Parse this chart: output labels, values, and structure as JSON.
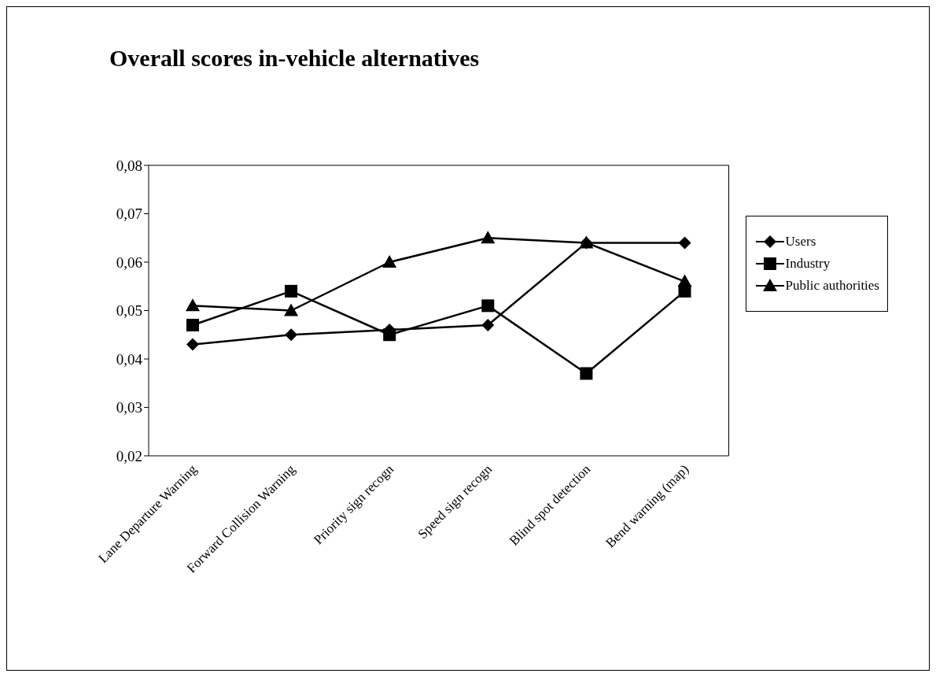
{
  "chart_data": {
    "type": "line",
    "title": "Overall scores in-vehicle alternatives",
    "categories": [
      "Lane Departure Warning",
      "Forward Collision Warning",
      "Priority sign recogn",
      "Speed sign recogn",
      "Blind spot detection",
      "Bend warning (map)"
    ],
    "series": [
      {
        "name": "Users",
        "color": "#000000",
        "marker": "diamond",
        "values": [
          0.043,
          0.045,
          0.046,
          0.047,
          0.064,
          0.064
        ]
      },
      {
        "name": "Industry",
        "color": "#000000",
        "marker": "square",
        "values": [
          0.047,
          0.054,
          0.045,
          0.051,
          0.037,
          0.054
        ]
      },
      {
        "name": "Public authorities",
        "color": "#000000",
        "marker": "triangle",
        "values": [
          0.051,
          0.05,
          0.06,
          0.065,
          0.064,
          0.056
        ]
      }
    ],
    "ylim": [
      0.02,
      0.08
    ],
    "yticks": [
      {
        "value": 0.02,
        "label": "0,02"
      },
      {
        "value": 0.03,
        "label": "0,03"
      },
      {
        "value": 0.04,
        "label": "0,04"
      },
      {
        "value": 0.05,
        "label": "0,05"
      },
      {
        "value": 0.06,
        "label": "0,06"
      },
      {
        "value": 0.07,
        "label": "0,07"
      },
      {
        "value": 0.08,
        "label": "0,08"
      }
    ],
    "grid": false,
    "legend": "right",
    "line_style": "solid"
  }
}
